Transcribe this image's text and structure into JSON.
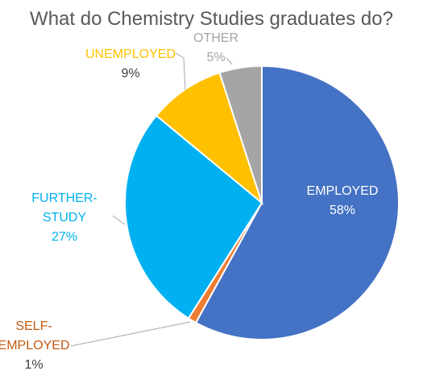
{
  "chart_data": {
    "type": "pie",
    "title": "What do Chemistry Studies graduates do?",
    "slices": [
      {
        "label": "EMPLOYED",
        "label_lines": [
          "EMPLOYED"
        ],
        "value": 58,
        "display": "58%",
        "color": "#4472C4",
        "label_color": "#FFFFFF",
        "value_color": "#FFFFFF"
      },
      {
        "label": "SELF-EMPLOYED",
        "label_lines": [
          "SELF-",
          "EMPLOYED"
        ],
        "value": 1,
        "display": "1%",
        "color": "#ED7D31",
        "label_color": "#C55A11",
        "value_color": "#404040"
      },
      {
        "label": "FURTHER-STUDY",
        "label_lines": [
          "FURTHER-",
          "STUDY"
        ],
        "value": 27,
        "display": "27%",
        "color": "#00B0F0",
        "label_color": "#00B0F0",
        "value_color": "#00B0F0"
      },
      {
        "label": "UNEMPLOYED",
        "label_lines": [
          "UNEMPLOYED"
        ],
        "value": 9,
        "display": "9%",
        "color": "#FFC000",
        "label_color": "#FFC000",
        "value_color": "#404040"
      },
      {
        "label": "OTHER",
        "label_lines": [
          "OTHER"
        ],
        "value": 5,
        "display": "5%",
        "color": "#A5A5A5",
        "label_color": "#A5A5A5",
        "value_color": "#A5A5A5"
      }
    ]
  }
}
